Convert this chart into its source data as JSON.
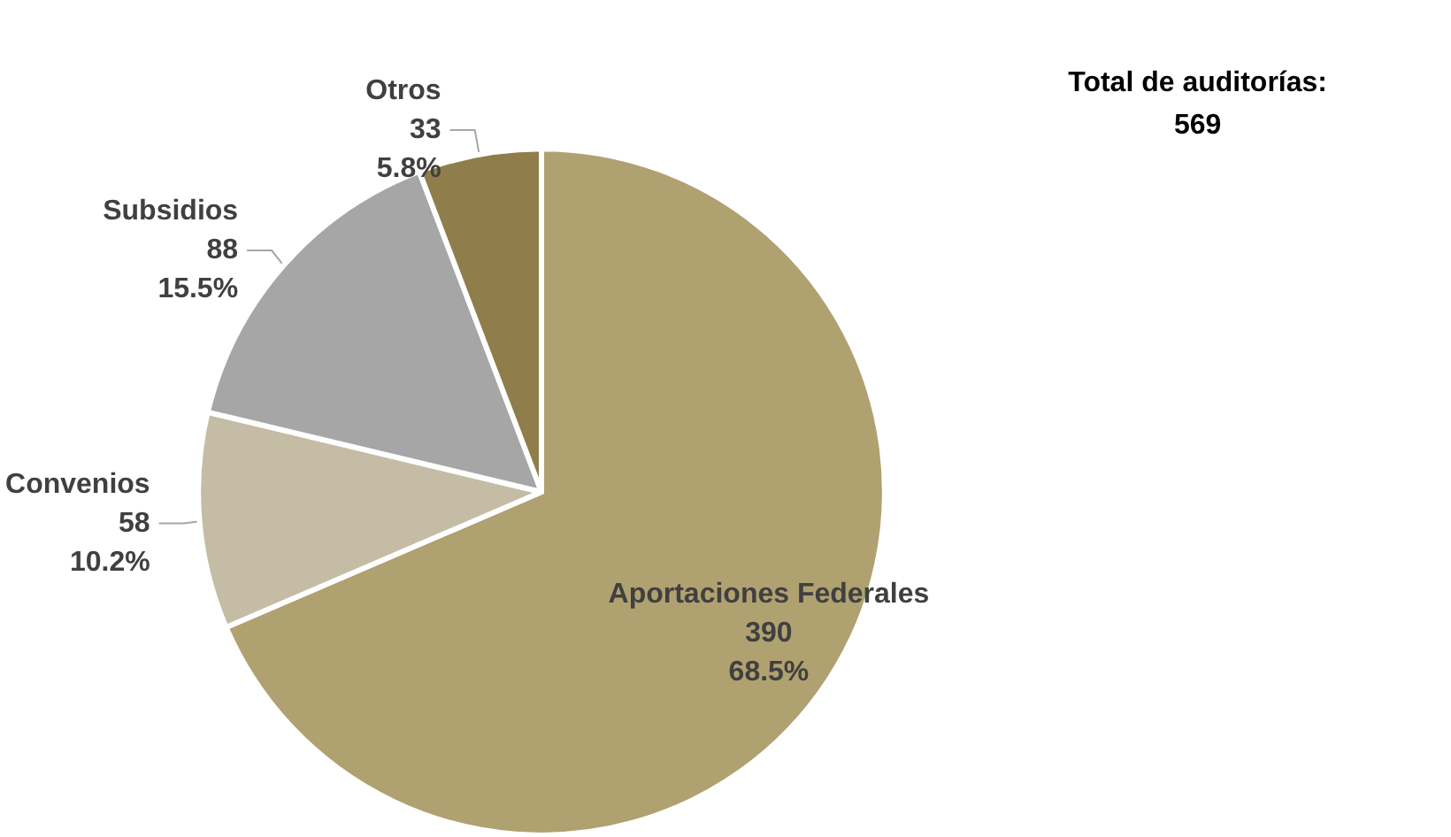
{
  "chart_data": {
    "type": "pie",
    "categories": [
      "Aportaciones Federales",
      "Convenios",
      "Subsidios",
      "Otros"
    ],
    "values": [
      390,
      58,
      88,
      33
    ],
    "colors": [
      "#b0a170",
      "#c4bca4",
      "#a6a6a6",
      "#8f7d4b"
    ],
    "value_labels": [
      "390\n68.5%",
      "58\n10.2%",
      "88\n15.5%",
      "33\n5.8%"
    ],
    "legend": false,
    "annotations": [
      "Total de auditorías:\n569"
    ]
  }
}
